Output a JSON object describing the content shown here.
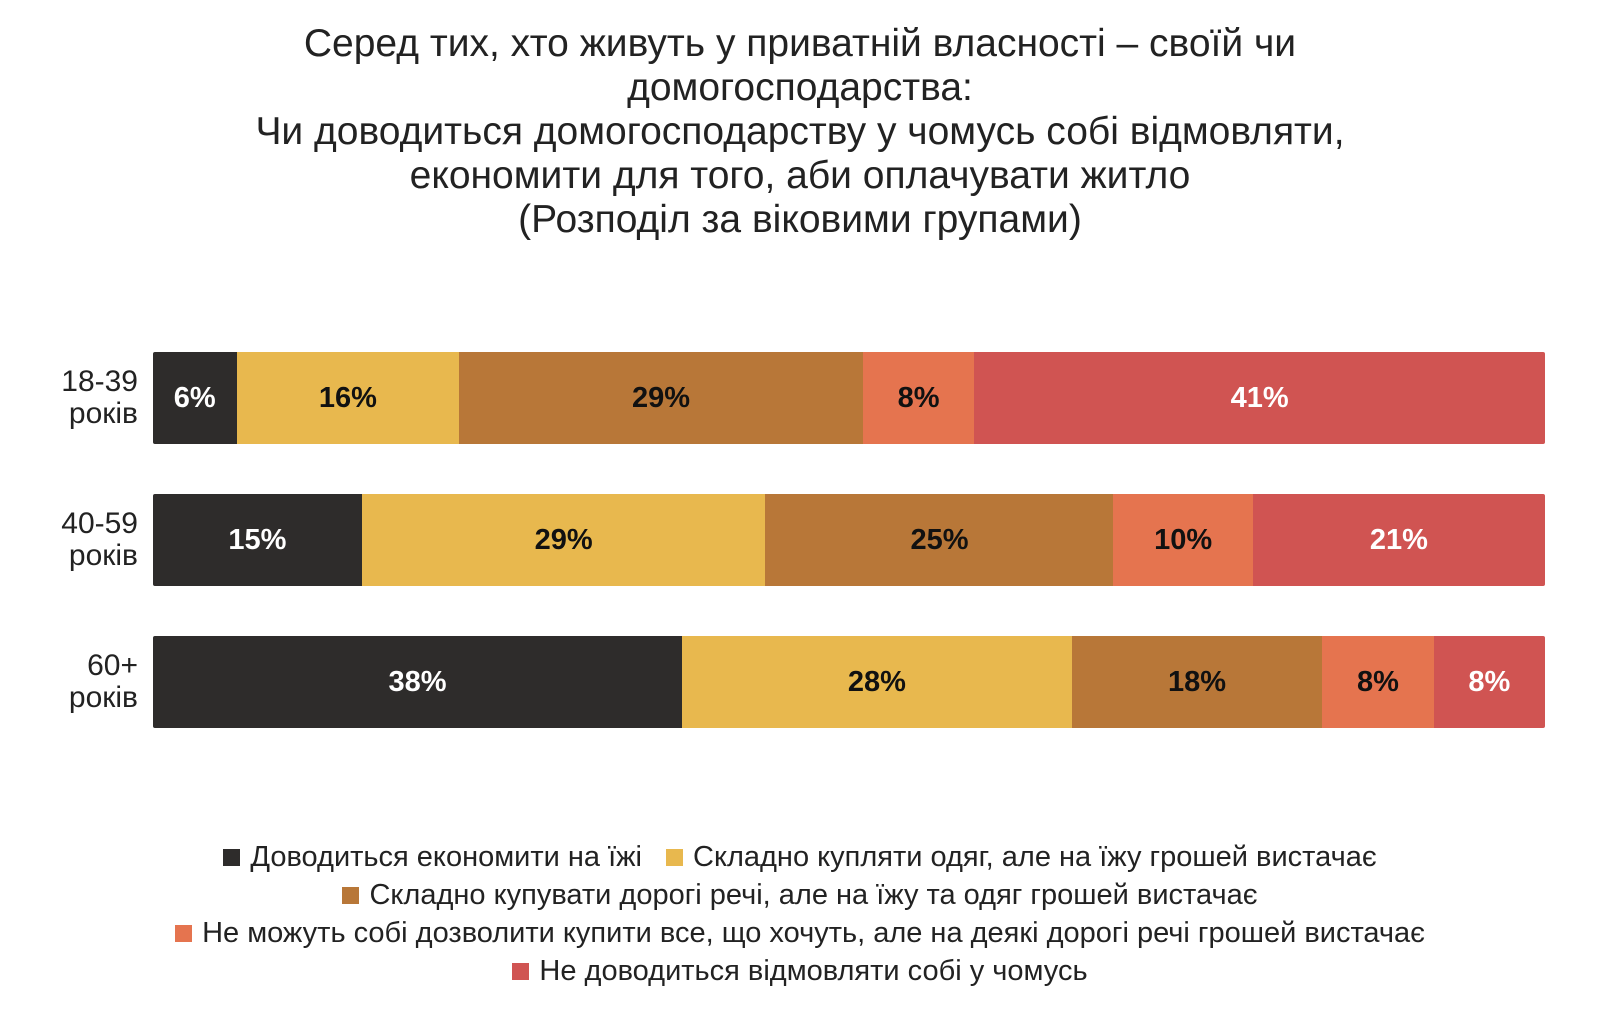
{
  "chart_data": {
    "type": "bar",
    "orientation": "horizontal",
    "stacked": true,
    "title_lines": [
      "Серед тих, хто живуть у приватній власності – своїй чи",
      "домогосподарства:",
      "Чи доводиться домогосподарству у чомусь собі відмовляти,",
      "економити для того, аби оплачувати житло",
      "(Розподіл за віковими групами)"
    ],
    "categories": [
      {
        "line1": "18-39",
        "line2": "років"
      },
      {
        "line1": "40-59",
        "line2": "років"
      },
      {
        "line1": "60+",
        "line2": "років"
      }
    ],
    "series": [
      {
        "name": "Доводиться економити на їжі",
        "color": "#2e2c2b",
        "text_color": "#ffffff",
        "values": [
          6,
          15,
          38
        ],
        "labels": [
          "6%",
          "15%",
          "38%"
        ]
      },
      {
        "name": "Складно купляти одяг, але на їжу грошей вистачає",
        "color": "#e8b84e",
        "text_color": "#111111",
        "values": [
          16,
          29,
          28
        ],
        "labels": [
          "16%",
          "29%",
          "28%"
        ]
      },
      {
        "name": "Складно купувати дорогі речі, але на їжу та одяг грошей вистачає",
        "color": "#b87738",
        "text_color": "#111111",
        "values": [
          29,
          25,
          18
        ],
        "labels": [
          "29%",
          "25%",
          "18%"
        ]
      },
      {
        "name": "Не можуть собі дозволити купити все, що хочуть, але на деякі дорогі речі грошей вистачає",
        "color": "#e5744f",
        "text_color": "#111111",
        "values": [
          8,
          10,
          8
        ],
        "labels": [
          "8%",
          "10%",
          "8%"
        ]
      },
      {
        "name": "Не доводиться відмовляти собі у чомусь",
        "color": "#d05452",
        "text_color": "#ffffff",
        "values": [
          41,
          21,
          8
        ],
        "labels": [
          "41%",
          "21%",
          "8%"
        ]
      }
    ],
    "xlim": [
      0,
      100
    ],
    "grid": false,
    "legend_position": "bottom"
  }
}
